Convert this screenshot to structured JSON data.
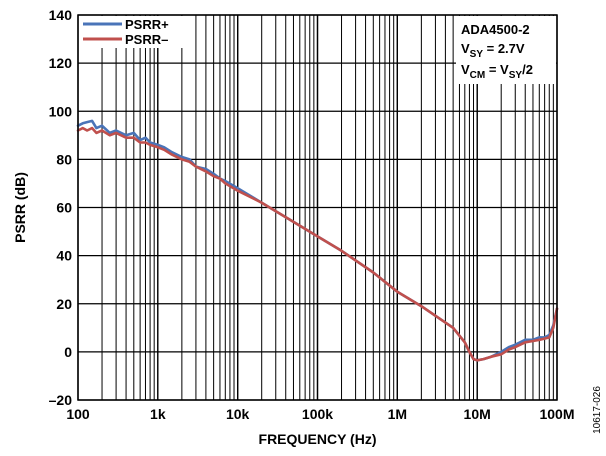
{
  "chart_data": {
    "type": "line",
    "title": "",
    "xlabel": "FREQUENCY (Hz)",
    "ylabel": "PSRR (dB)",
    "x_scale": "log",
    "xlim": [
      100,
      100000000
    ],
    "ylim": [
      -20,
      140
    ],
    "x_ticks": [
      100,
      1000,
      10000,
      100000,
      1000000,
      10000000,
      100000000
    ],
    "x_tick_labels": [
      "100",
      "1k",
      "10k",
      "100k",
      "1M",
      "10M",
      "100M"
    ],
    "y_ticks": [
      -20,
      0,
      20,
      40,
      60,
      80,
      100,
      120,
      140
    ],
    "y_tick_labels": [
      "–20",
      "0",
      "20",
      "40",
      "60",
      "80",
      "100",
      "120",
      "140"
    ],
    "grid": true,
    "legend_position": "top-left",
    "series": [
      {
        "name": "PSRR+",
        "color": "#4a74b8",
        "x": [
          100,
          115,
          130,
          150,
          170,
          200,
          250,
          300,
          400,
          500,
          600,
          700,
          800,
          1000,
          1200,
          1500,
          2000,
          2500,
          3000,
          4000,
          5000,
          6000,
          7000,
          10000,
          20000,
          50000,
          100000,
          200000,
          500000,
          1000000,
          2000000,
          5000000,
          7000000,
          8000000,
          9000000,
          10000000,
          12000000,
          15000000,
          20000000,
          25000000,
          30000000,
          40000000,
          50000000,
          60000000,
          70000000,
          80000000,
          90000000,
          100000000
        ],
        "y": [
          94,
          95,
          95.5,
          96,
          93,
          94,
          91,
          92,
          90,
          91,
          88,
          89,
          87,
          86,
          85,
          83,
          81,
          80,
          77,
          76,
          74,
          72,
          71,
          68,
          62,
          54,
          48,
          42,
          33,
          25,
          19,
          10,
          4,
          0,
          -3,
          -3.5,
          -3,
          -2,
          0,
          2,
          3,
          5,
          5,
          6,
          6,
          7,
          11,
          18
        ]
      },
      {
        "name": "PSRR–",
        "color": "#c0504d",
        "x": [
          100,
          115,
          130,
          150,
          170,
          200,
          250,
          300,
          400,
          500,
          600,
          700,
          800,
          1000,
          1200,
          1500,
          2000,
          2500,
          3000,
          4000,
          5000,
          6000,
          7000,
          10000,
          20000,
          50000,
          100000,
          200000,
          500000,
          1000000,
          2000000,
          5000000,
          7000000,
          8000000,
          9000000,
          10000000,
          12000000,
          15000000,
          20000000,
          25000000,
          30000000,
          40000000,
          50000000,
          60000000,
          70000000,
          80000000,
          90000000,
          100000000
        ],
        "y": [
          92,
          93,
          92,
          93,
          91,
          92,
          90,
          91,
          89,
          89,
          87,
          87,
          86,
          85,
          84,
          82,
          80,
          79,
          77,
          75,
          73,
          72,
          70,
          67,
          62,
          54,
          48,
          42,
          33,
          25,
          19,
          10,
          4,
          0,
          -3,
          -3.5,
          -3,
          -2,
          -1,
          1,
          2,
          4,
          4.5,
          5,
          5.5,
          6,
          10,
          18
        ]
      }
    ],
    "annotation_lines": [
      "ADA4500-2",
      "V",
      "SY",
      " = 2.7V",
      "V",
      "CM",
      " = V",
      "SY",
      "/2"
    ],
    "figure_id": "10617-026"
  }
}
